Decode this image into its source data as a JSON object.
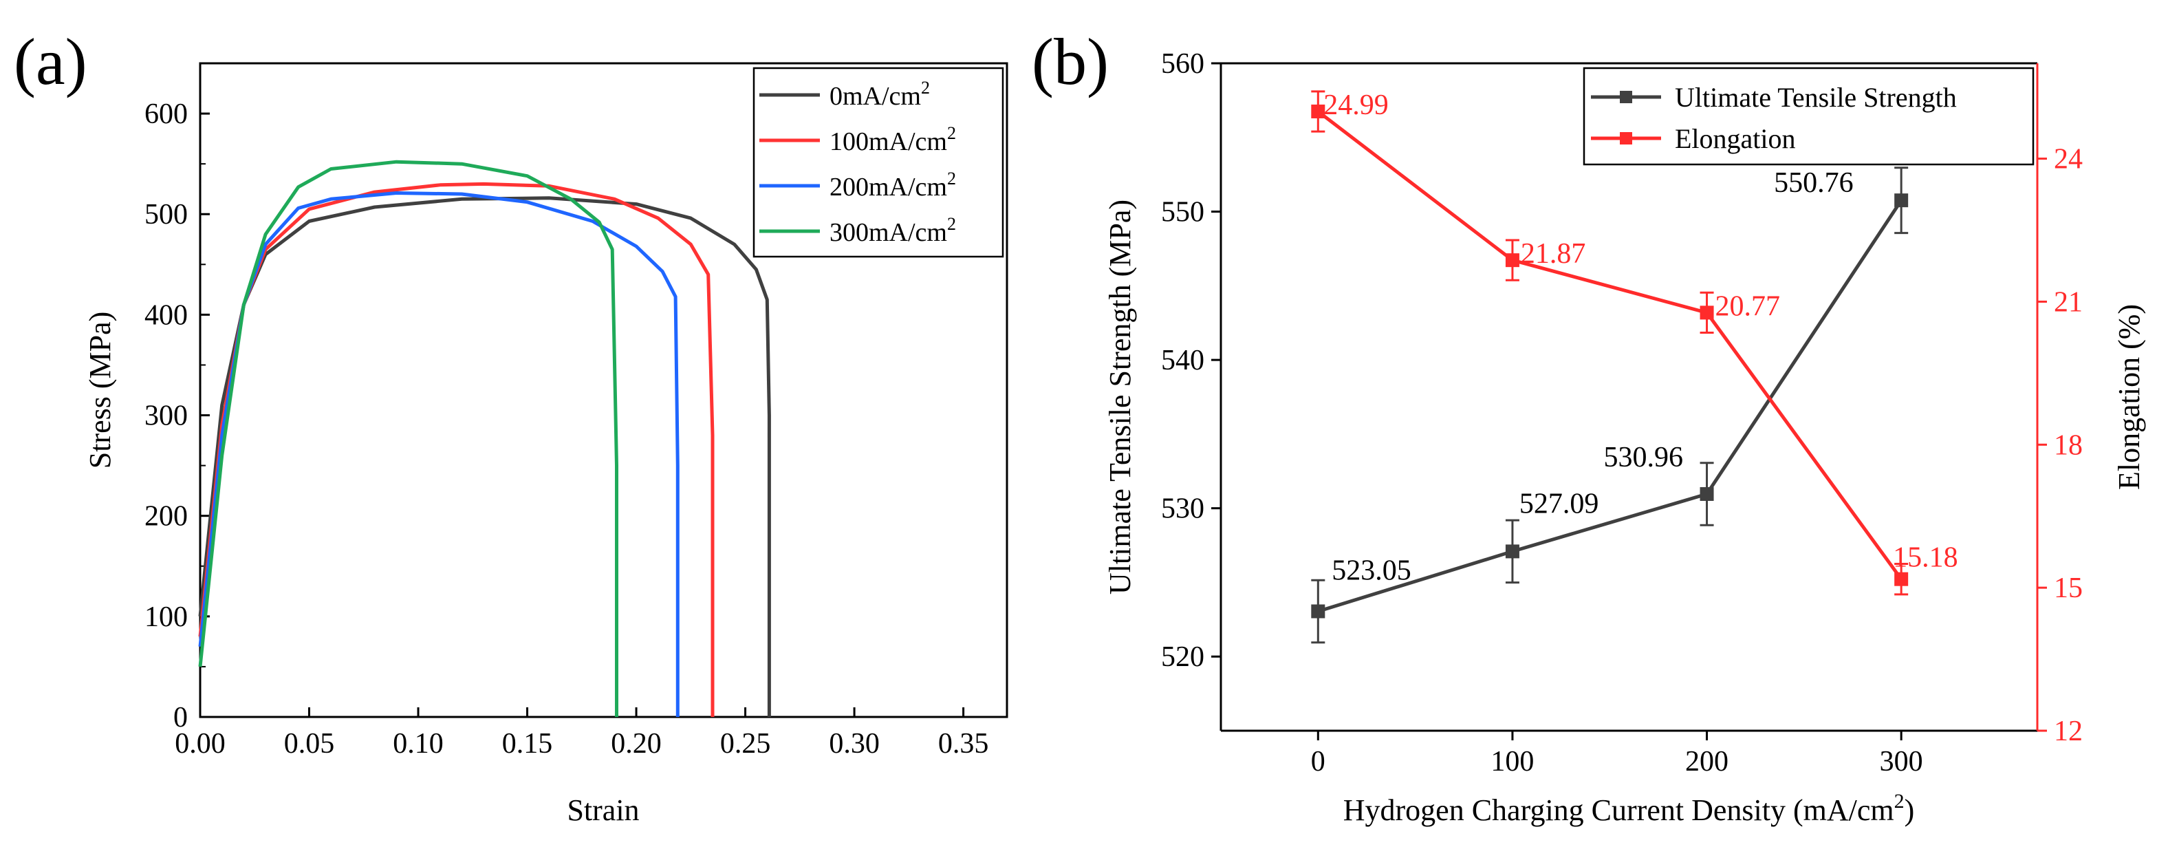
{
  "colors": {
    "axis": "#000000",
    "strength": "#404040",
    "elongation": "#ff2b2b",
    "curves": [
      "#404040",
      "#ff3333",
      "#1f66ff",
      "#1faa59"
    ]
  },
  "chart_data": [
    {
      "panel_label": "(a)",
      "type": "line",
      "title": "",
      "xlabel": "Strain",
      "ylabel": "Stress (MPa)",
      "xlim": [
        0.0,
        0.37
      ],
      "ylim": [
        0,
        650
      ],
      "xticks": [
        "0.00",
        "0.05",
        "0.10",
        "0.15",
        "0.20",
        "0.25",
        "0.30",
        "0.35"
      ],
      "yticks": [
        "0",
        "100",
        "200",
        "300",
        "400",
        "500",
        "600"
      ],
      "legend_position": "top-right",
      "series": [
        {
          "name": "0mA/cm²",
          "base": "0mA/cm",
          "sup": "2",
          "x": [
            0,
            0.01,
            0.02,
            0.03,
            0.05,
            0.08,
            0.12,
            0.16,
            0.2,
            0.225,
            0.245,
            0.255,
            0.26,
            0.261,
            0.261
          ],
          "y": [
            100,
            310,
            410,
            460,
            493,
            507,
            515,
            516,
            510,
            496,
            470,
            445,
            415,
            300,
            0
          ]
        },
        {
          "name": "100mA/cm²",
          "base": "100mA/cm",
          "sup": "2",
          "x": [
            0,
            0.01,
            0.02,
            0.03,
            0.05,
            0.08,
            0.11,
            0.13,
            0.16,
            0.19,
            0.21,
            0.225,
            0.233,
            0.235,
            0.235
          ],
          "y": [
            80,
            290,
            410,
            465,
            505,
            522,
            529,
            530,
            528,
            515,
            496,
            470,
            440,
            280,
            0
          ]
        },
        {
          "name": "200mA/cm²",
          "base": "200mA/cm",
          "sup": "2",
          "x": [
            0,
            0.01,
            0.02,
            0.03,
            0.045,
            0.06,
            0.09,
            0.12,
            0.15,
            0.18,
            0.2,
            0.212,
            0.218,
            0.219,
            0.219
          ],
          "y": [
            70,
            280,
            410,
            470,
            506,
            515,
            521,
            520,
            512,
            493,
            468,
            443,
            418,
            250,
            0
          ]
        },
        {
          "name": "300mA/cm²",
          "base": "300mA/cm",
          "sup": "2",
          "x": [
            0,
            0.01,
            0.02,
            0.03,
            0.045,
            0.06,
            0.09,
            0.12,
            0.15,
            0.17,
            0.183,
            0.189,
            0.191,
            0.191
          ],
          "y": [
            50,
            260,
            410,
            480,
            527,
            545,
            552,
            550,
            538,
            515,
            492,
            465,
            250,
            0
          ]
        }
      ]
    },
    {
      "panel_label": "(b)",
      "type": "line",
      "title": "",
      "xlabel_base": "Hydrogen Charging Current Density (mA/cm",
      "xlabel_sup": "2",
      "xlabel_close": ")",
      "ylabel": "Ultimate Tensile Strength (MPa)",
      "y2label": "Elongation (%)",
      "x": [
        0,
        100,
        200,
        300
      ],
      "xticks": [
        "0",
        "100",
        "200",
        "300"
      ],
      "xlim": [
        -50,
        370
      ],
      "ylim": [
        515,
        560
      ],
      "yticks": [
        "520",
        "530",
        "540",
        "550",
        "560"
      ],
      "y2lim": [
        12,
        26
      ],
      "y2ticks": [
        "12",
        "15",
        "18",
        "21",
        "24"
      ],
      "legend_position": "top-right",
      "series": [
        {
          "name": "Ultimate Tensile Strength",
          "axis": "left",
          "values": [
            523.05,
            527.09,
            530.96,
            550.76
          ],
          "errors": [
            2.1,
            2.1,
            2.1,
            2.2
          ],
          "labels": [
            "523.05",
            "527.09",
            "530.96",
            "550.76"
          ]
        },
        {
          "name": "Elongation",
          "axis": "right",
          "values": [
            24.99,
            21.87,
            20.77,
            15.18
          ],
          "errors": [
            0.42,
            0.42,
            0.42,
            0.32
          ],
          "labels": [
            "24.99",
            "21.87",
            "20.77",
            "15.18"
          ]
        }
      ]
    }
  ]
}
